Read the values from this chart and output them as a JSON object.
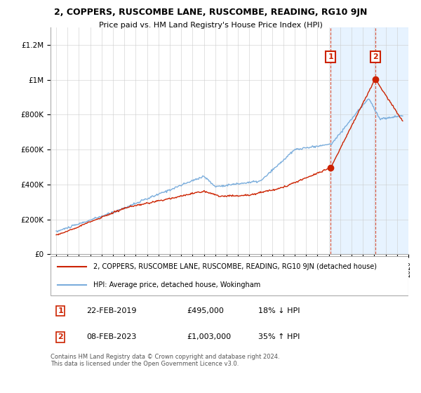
{
  "title": "2, COPPERS, RUSCOMBE LANE, RUSCOMBE, READING, RG10 9JN",
  "subtitle": "Price paid vs. HM Land Registry's House Price Index (HPI)",
  "hpi_color": "#7aaddc",
  "price_color": "#cc2200",
  "marker1_date": 2019.15,
  "marker1_label": "1",
  "marker1_price": 495000,
  "marker2_date": 2023.1,
  "marker2_label": "2",
  "marker2_price": 1003000,
  "ylim": [
    0,
    1300000
  ],
  "xlim": [
    1994.5,
    2026.0
  ],
  "ylabel_ticks": [
    0,
    200000,
    400000,
    600000,
    800000,
    1000000,
    1200000
  ],
  "ylabel_labels": [
    "£0",
    "£200K",
    "£400K",
    "£600K",
    "£800K",
    "£1M",
    "£1.2M"
  ],
  "legend_line1": "2, COPPERS, RUSCOMBE LANE, RUSCOMBE, READING, RG10 9JN (detached house)",
  "legend_line2": "HPI: Average price, detached house, Wokingham",
  "annotation1_date": "22-FEB-2019",
  "annotation1_price": "£495,000",
  "annotation1_pct": "18% ↓ HPI",
  "annotation2_date": "08-FEB-2023",
  "annotation2_price": "£1,003,000",
  "annotation2_pct": "35% ↑ HPI",
  "footnote": "Contains HM Land Registry data © Crown copyright and database right 2024.\nThis data is licensed under the Open Government Licence v3.0.",
  "bg_color": "#ffffff",
  "highlight_color": "#ddeeff"
}
